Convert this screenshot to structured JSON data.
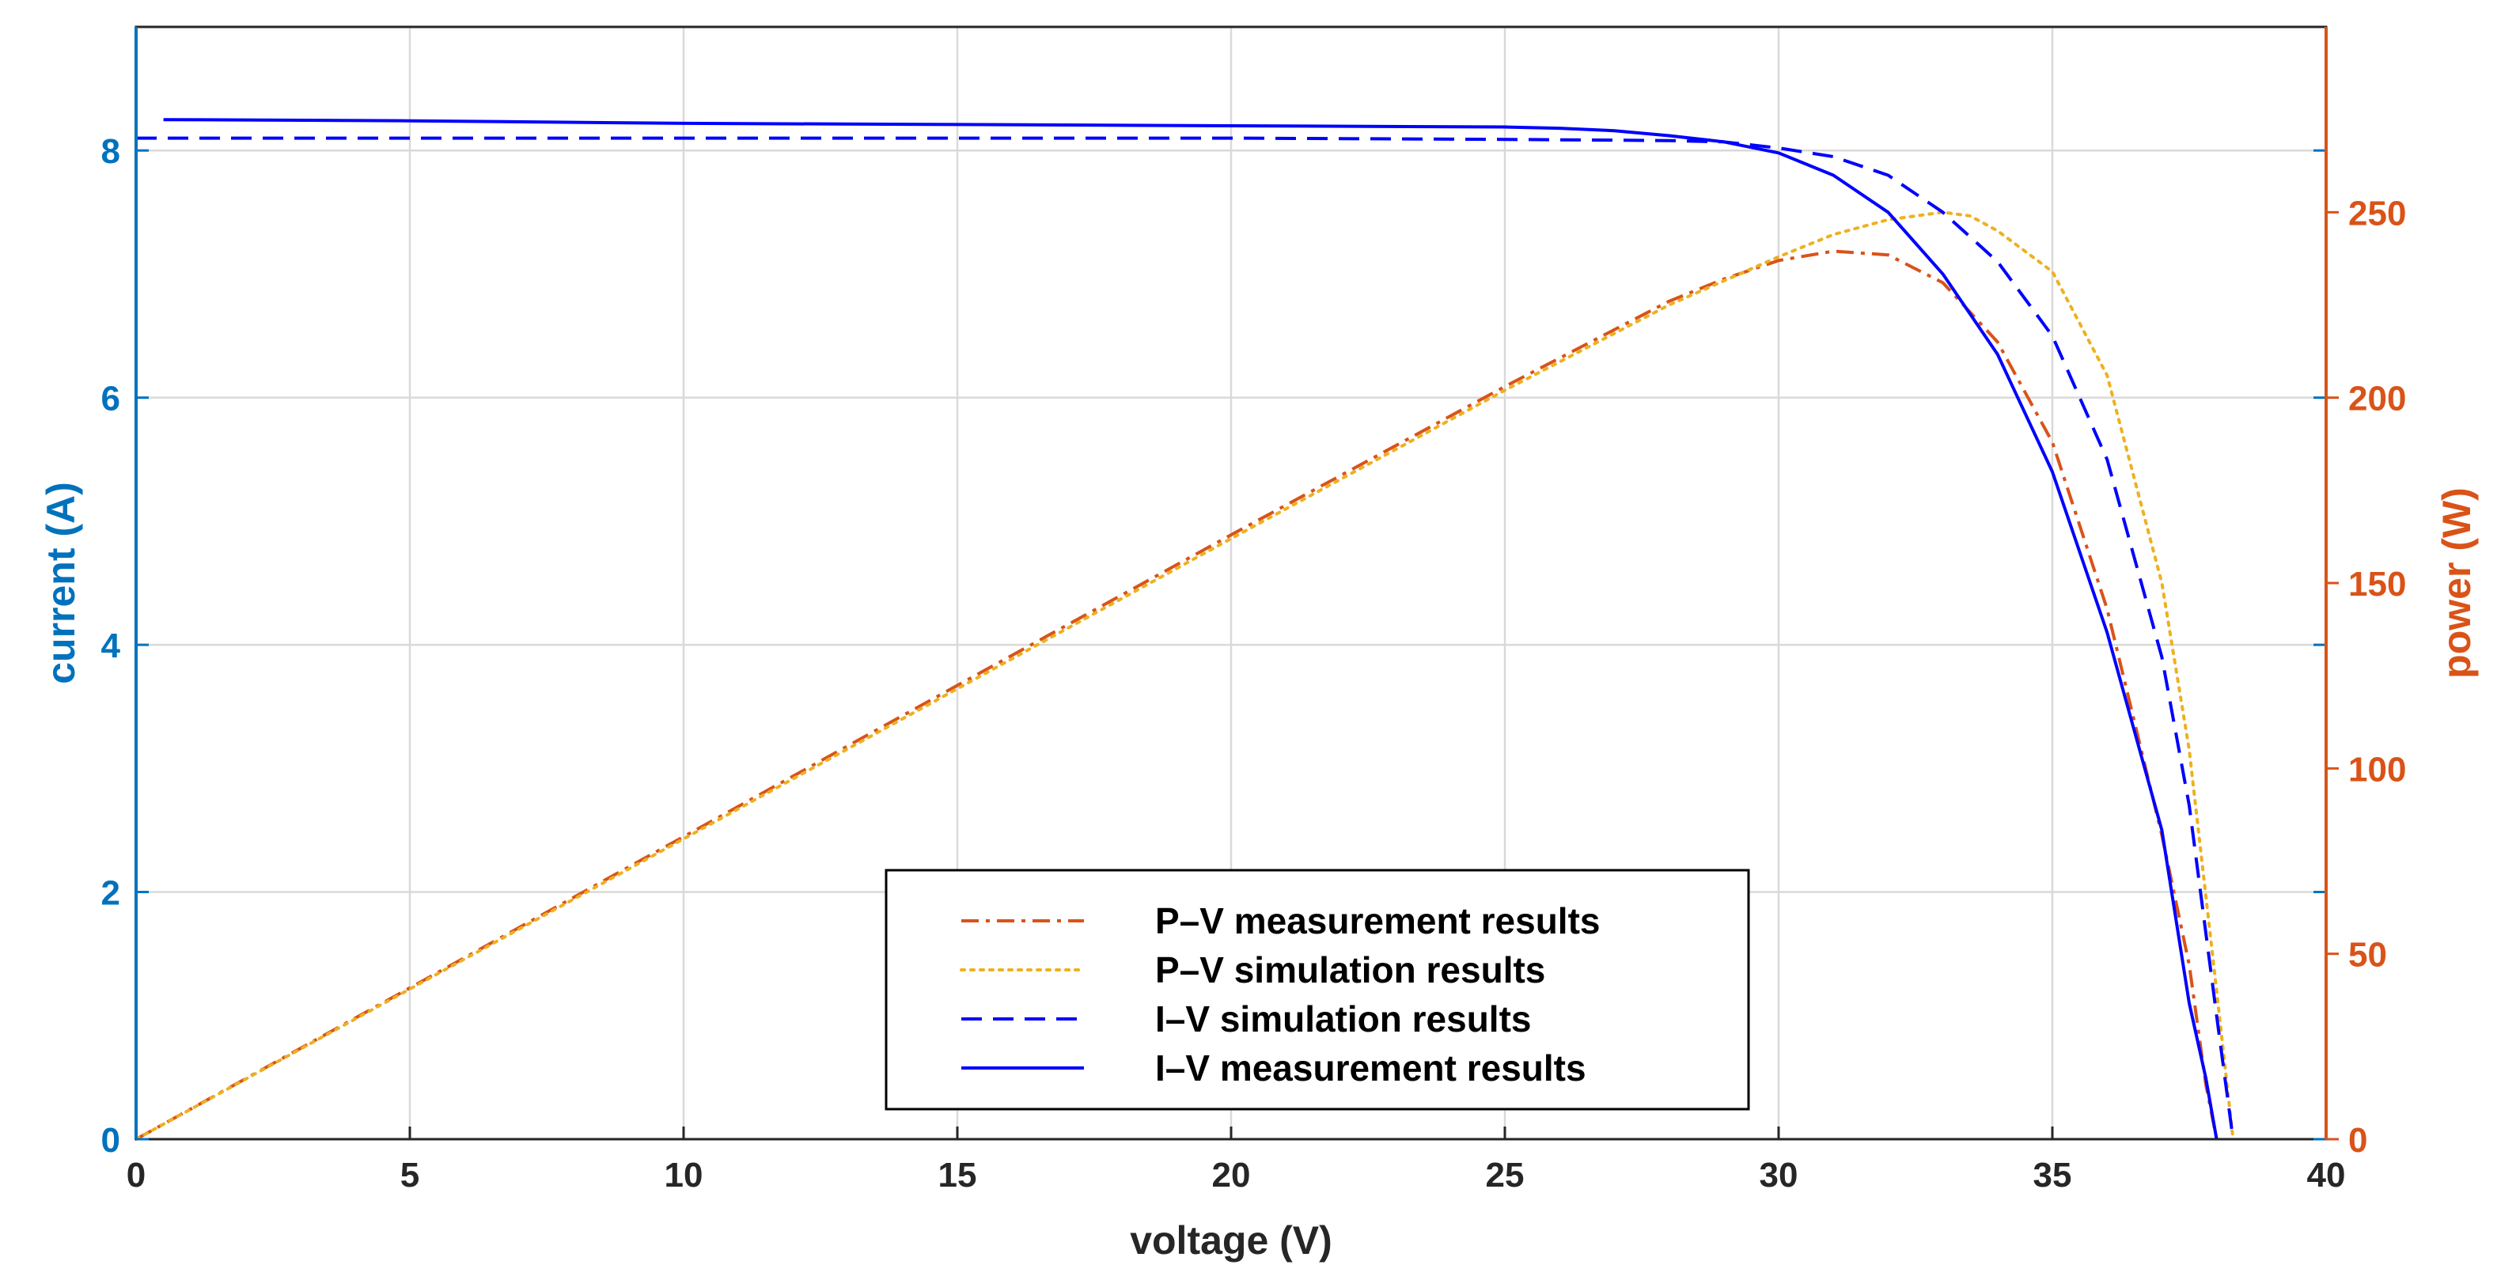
{
  "chart_data": {
    "type": "line",
    "xlabel": "voltage (V)",
    "ylabel_left": "current (A)",
    "ylabel_right": "power (W)",
    "xlim": [
      0,
      40
    ],
    "ylim_left": [
      0,
      9
    ],
    "ylim_right": [
      0,
      300
    ],
    "x_ticks": [
      "0",
      "5",
      "10",
      "15",
      "20",
      "25",
      "30",
      "35",
      "40"
    ],
    "y_left_ticks": [
      "0",
      "2",
      "4",
      "6",
      "8"
    ],
    "y_right_ticks": [
      "0",
      "50",
      "100",
      "150",
      "200",
      "250"
    ],
    "grid": true,
    "legend_position": "bottom-center",
    "series": [
      {
        "name": "P–V measurement results",
        "axis": "right",
        "color": "#D95319",
        "style": "dash-dot",
        "x": [
          0,
          5,
          10,
          15,
          20,
          25,
          28,
          29,
          30,
          31,
          32,
          33,
          34,
          35,
          36,
          37,
          37.5,
          37.8,
          38
        ],
        "values": [
          0,
          40.8,
          81.6,
          122.4,
          163,
          203,
          226,
          232,
          237,
          239.5,
          238.5,
          231,
          215,
          188,
          143,
          82,
          47,
          15,
          0
        ]
      },
      {
        "name": "P–V simulation results",
        "axis": "right",
        "color": "#EDB120",
        "style": "dotted",
        "x": [
          0,
          5,
          10,
          15,
          20,
          25,
          28,
          30,
          31,
          32,
          33,
          33.5,
          34,
          35,
          36,
          37,
          37.5,
          38,
          38.3
        ],
        "values": [
          0,
          40.5,
          81,
          121.5,
          162,
          202,
          225,
          238,
          244,
          248,
          250,
          249,
          245,
          234,
          206,
          150,
          105,
          40,
          0
        ]
      },
      {
        "name": "I–V simulation results",
        "axis": "left",
        "color": "#0000FF",
        "style": "dashed",
        "x": [
          0,
          5,
          10,
          15,
          20,
          25,
          28,
          29,
          30,
          31,
          32,
          33,
          34,
          35,
          36,
          37,
          37.5,
          38,
          38.3
        ],
        "values": [
          8.1,
          8.1,
          8.1,
          8.1,
          8.1,
          8.09,
          8.08,
          8.07,
          8.02,
          7.95,
          7.8,
          7.5,
          7.1,
          6.5,
          5.5,
          3.9,
          2.7,
          1.0,
          0
        ]
      },
      {
        "name": "I–V measurement results",
        "axis": "left",
        "color": "#0000FF",
        "style": "solid",
        "x": [
          0.5,
          5,
          10,
          15,
          20,
          25,
          26,
          27,
          28,
          29,
          30,
          31,
          32,
          33,
          34,
          35,
          36,
          37,
          37.5,
          37.8,
          38
        ],
        "values": [
          8.25,
          8.24,
          8.22,
          8.21,
          8.2,
          8.19,
          8.18,
          8.16,
          8.12,
          8.07,
          7.98,
          7.8,
          7.5,
          7.0,
          6.35,
          5.4,
          4.1,
          2.5,
          1.1,
          0.5,
          0
        ]
      }
    ]
  }
}
